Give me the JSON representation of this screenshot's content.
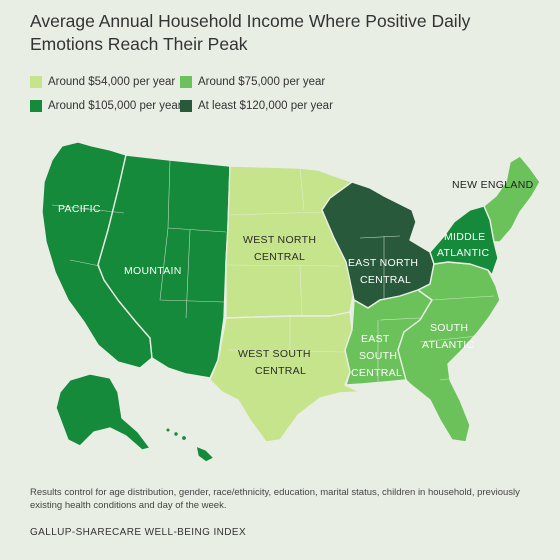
{
  "title": "Average Annual Household Income Where Positive Daily Emotions Reach Their Peak",
  "legend": [
    {
      "label": "Around $54,000 per year",
      "color": "#c6e48b"
    },
    {
      "label": "Around $75,000 per year",
      "color": "#6cc25a"
    },
    {
      "label": "Around $105,000 per year",
      "color": "#158a3b"
    },
    {
      "label": "At least $120,000 per year",
      "color": "#28593a"
    }
  ],
  "regions": {
    "pacific": {
      "line1": "PACIFIC",
      "color": "#158a3b"
    },
    "mountain": {
      "line1": "MOUNTAIN",
      "color": "#158a3b"
    },
    "west_north_central": {
      "line1": "WEST NORTH",
      "line2": "CENTRAL",
      "color": "#c6e48b"
    },
    "west_south_central": {
      "line1": "WEST SOUTH",
      "line2": "CENTRAL",
      "color": "#c6e48b"
    },
    "east_north_central": {
      "line1": "EAST NORTH",
      "line2": "CENTRAL",
      "color": "#28593a"
    },
    "east_south_central": {
      "line1": "EAST",
      "line2": "SOUTH",
      "line3": "CENTRAL",
      "color": "#6cc25a"
    },
    "south_atlantic": {
      "line1": "SOUTH",
      "line2": "ATLANTIC",
      "color": "#6cc25a"
    },
    "middle_atlantic": {
      "line1": "MIDDLE",
      "line2": "ATLANTIC",
      "color": "#158a3b"
    },
    "new_england": {
      "line1": "NEW ENGLAND",
      "color": "#6cc25a"
    }
  },
  "footnote": "Results control for age distribution, gender, race/ethnicity, education, marital status, children in household, previously existing health conditions and day of the week.",
  "source": "GALLUP-SHARECARE WELL-BEING INDEX"
}
